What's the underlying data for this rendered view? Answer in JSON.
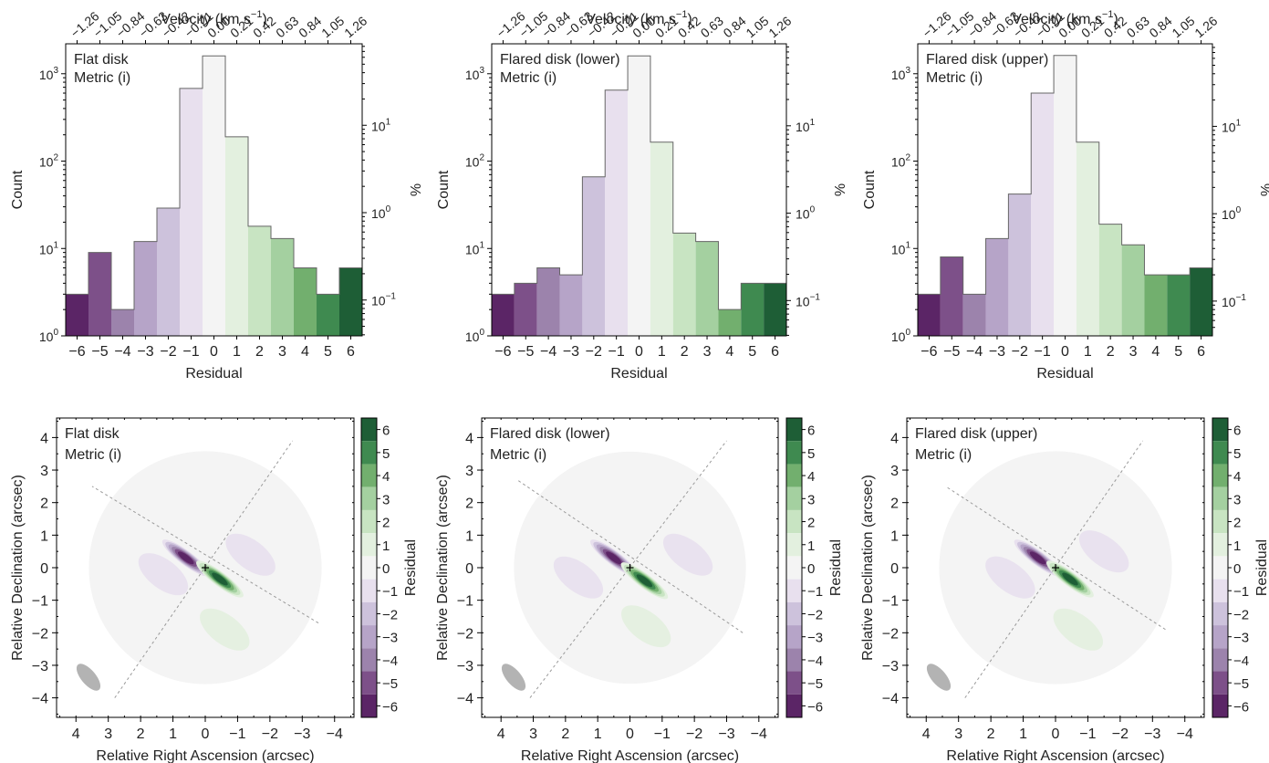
{
  "figure": {
    "colors": {
      "purple": [
        "#5b2566",
        "#7d5089",
        "#9c83ac",
        "#b6a4c8",
        "#cdc2dc",
        "#e8e0ee"
      ],
      "neutral": "#f4f4f4",
      "green": [
        "#e3f0df",
        "#c8e4c2",
        "#a4d0a0",
        "#72af6e",
        "#3f8a50",
        "#1e5e36"
      ],
      "boundary": "#666666",
      "axis_line": "#9a9a9a",
      "beam": "#b3b3b3"
    },
    "residual_ticks": [
      "−6",
      "−5",
      "−4",
      "−3",
      "−2",
      "−1",
      "0",
      "1",
      "2",
      "3",
      "4",
      "5",
      "6"
    ],
    "velocity_ticks": [
      "−1.26",
      "−1.05",
      "−0.84",
      "−0.63",
      "−0.42",
      "−0.21",
      "0.00",
      "0.21",
      "0.42",
      "0.63",
      "0.84",
      "1.05",
      "1.26"
    ],
    "count_ticks": [
      {
        "base": "10",
        "exp": "0",
        "value": 1
      },
      {
        "base": "10",
        "exp": "1",
        "value": 10
      },
      {
        "base": "10",
        "exp": "2",
        "value": 100
      },
      {
        "base": "10",
        "exp": "3",
        "value": 1000
      }
    ],
    "percent_ticks": [
      {
        "base": "10",
        "exp": "−1",
        "value": 0.1
      },
      {
        "base": "10",
        "exp": "0",
        "value": 1
      },
      {
        "base": "10",
        "exp": "1",
        "value": 10
      }
    ],
    "ra_ticks": [
      "4",
      "3",
      "2",
      "1",
      "0",
      "−1",
      "−2",
      "−3",
      "−4"
    ],
    "dec_ticks": [
      "4",
      "3",
      "2",
      "1",
      "0",
      "−1",
      "−2",
      "−3",
      "−4"
    ],
    "colorbar_ticks": [
      "6",
      "5",
      "4",
      "3",
      "2",
      "1",
      "0",
      "−1",
      "−2",
      "−3",
      "−4",
      "−5",
      "−6"
    ],
    "labels": {
      "velocity": "Velocity (km s",
      "velocity_exp": "−1",
      "velocity_close": ")",
      "residual": "Residual",
      "count": "Count",
      "percent": "%",
      "ra": "Relative Right Ascension (arcsec)",
      "dec": "Relative Declination (arcsec)",
      "colorbar": "Residual"
    }
  },
  "chart_data": [
    {
      "type": "bar",
      "panel": "histogram",
      "annotation": [
        "Flat disk",
        "Metric (i)"
      ],
      "categories": [
        -6,
        -5,
        -4,
        -3,
        -2,
        -1,
        0,
        1,
        2,
        3,
        4,
        5,
        6
      ],
      "values": [
        3,
        9,
        2,
        12,
        29,
        680,
        1600,
        190,
        18,
        13,
        6,
        3,
        6
      ],
      "xlabel": "Residual",
      "ylabel": "Count",
      "ylim": [
        1,
        2200
      ],
      "yscale": "log",
      "secondary_xlabel": "Velocity (km s−1)",
      "secondary_ylabel": "%"
    },
    {
      "type": "bar",
      "panel": "histogram",
      "annotation": [
        "Flared disk (lower)",
        "Metric (i)"
      ],
      "categories": [
        -6,
        -5,
        -4,
        -3,
        -2,
        -1,
        0,
        1,
        2,
        3,
        4,
        5,
        6
      ],
      "values": [
        3,
        4,
        6,
        5,
        66,
        650,
        1600,
        165,
        15,
        12,
        2,
        4,
        4
      ],
      "xlabel": "Residual",
      "ylabel": "Count",
      "ylim": [
        1,
        2200
      ],
      "yscale": "log",
      "secondary_xlabel": "Velocity (km s−1)",
      "secondary_ylabel": "%"
    },
    {
      "type": "bar",
      "panel": "histogram",
      "annotation": [
        "Flared disk (upper)",
        "Metric (i)"
      ],
      "categories": [
        -6,
        -5,
        -4,
        -3,
        -2,
        -1,
        0,
        1,
        2,
        3,
        4,
        5,
        6
      ],
      "values": [
        3,
        8,
        3,
        13,
        42,
        600,
        1620,
        165,
        19,
        11,
        5,
        5,
        6
      ],
      "xlabel": "Residual",
      "ylabel": "Count",
      "ylim": [
        1,
        2200
      ],
      "yscale": "log",
      "secondary_xlabel": "Velocity (km s−1)",
      "secondary_ylabel": "%"
    },
    {
      "type": "heatmap",
      "panel": "residual map",
      "annotation": [
        "Flat disk",
        "Metric (i)"
      ],
      "xlabel": "Relative Right Ascension (arcsec)",
      "ylabel": "Relative Declination (arcsec)",
      "xlim": [
        4.6,
        -4.6
      ],
      "ylim": [
        -4.6,
        4.6
      ],
      "colorbar_label": "Residual",
      "colorbar_range": [
        -6,
        6
      ],
      "disk_radius_arcsec": 3.6,
      "major_axis_angle_deg": -37,
      "major_axis_extent": [
        [
          -3.5,
          -1.7
        ],
        [
          3.5,
          2.5
        ]
      ],
      "minor_axis_extent": [
        [
          2.8,
          -4.0
        ],
        [
          -2.7,
          3.9
        ]
      ],
      "blobs": [
        {
          "ra": 0.6,
          "dec": 0.3,
          "value": -6
        },
        {
          "ra": -0.45,
          "dec": -0.35,
          "value": 6
        },
        {
          "ra": 1.3,
          "dec": -0.2,
          "value": -1
        },
        {
          "ra": -1.4,
          "dec": 0.4,
          "value": -1
        },
        {
          "ra": -0.6,
          "dec": -1.9,
          "value": 1
        }
      ]
    },
    {
      "type": "heatmap",
      "panel": "residual map",
      "annotation": [
        "Flared disk (lower)",
        "Metric (i)"
      ],
      "xlabel": "Relative Right Ascension (arcsec)",
      "ylabel": "Relative Declination (arcsec)",
      "xlim": [
        4.6,
        -4.6
      ],
      "ylim": [
        -4.6,
        4.6
      ],
      "colorbar_label": "Residual",
      "colorbar_range": [
        -6,
        6
      ],
      "disk_radius_arcsec": 3.6,
      "major_axis_angle_deg": -37,
      "major_axis_extent": [
        [
          -3.5,
          -2.0
        ],
        [
          3.5,
          2.7
        ]
      ],
      "minor_axis_extent": [
        [
          3.1,
          -4.0
        ],
        [
          -3.0,
          3.9
        ]
      ],
      "blobs": [
        {
          "ra": 0.5,
          "dec": 0.3,
          "value": -6
        },
        {
          "ra": -0.45,
          "dec": -0.4,
          "value": 6
        },
        {
          "ra": -1.8,
          "dec": 0.4,
          "value": -1
        },
        {
          "ra": 1.6,
          "dec": -0.3,
          "value": -1
        },
        {
          "ra": -0.5,
          "dec": -1.8,
          "value": 1
        }
      ]
    },
    {
      "type": "heatmap",
      "panel": "residual map",
      "annotation": [
        "Flared disk (upper)",
        "Metric (i)"
      ],
      "xlabel": "Relative Right Ascension (arcsec)",
      "ylabel": "Relative Declination (arcsec)",
      "xlim": [
        4.6,
        -4.6
      ],
      "ylim": [
        -4.6,
        4.6
      ],
      "colorbar_label": "Residual",
      "colorbar_range": [
        -6,
        6
      ],
      "disk_radius_arcsec": 3.6,
      "major_axis_angle_deg": -37,
      "major_axis_extent": [
        [
          -3.4,
          -1.9
        ],
        [
          3.4,
          2.5
        ]
      ],
      "minor_axis_extent": [
        [
          2.8,
          -4.0
        ],
        [
          -2.7,
          3.9
        ]
      ],
      "blobs": [
        {
          "ra": 0.55,
          "dec": 0.3,
          "value": -6
        },
        {
          "ra": -0.45,
          "dec": -0.35,
          "value": 6
        },
        {
          "ra": 1.4,
          "dec": -0.3,
          "value": -1
        },
        {
          "ra": -1.5,
          "dec": 0.5,
          "value": -1
        },
        {
          "ra": -0.7,
          "dec": -1.9,
          "value": 1
        }
      ]
    }
  ]
}
